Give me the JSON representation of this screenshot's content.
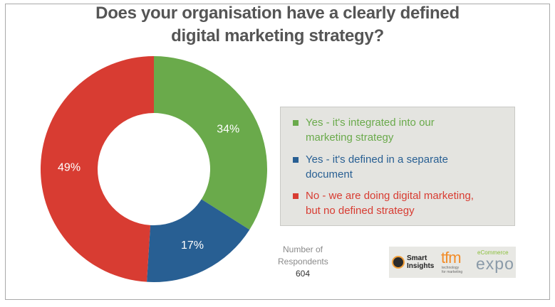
{
  "title_lines": [
    "Does your organisation have a clearly defined",
    "digital marketing strategy?"
  ],
  "respondents": {
    "label_lines": [
      "Number of",
      "Respondents"
    ],
    "count": "604"
  },
  "logos": {
    "smart_insights": [
      "Smart",
      "Insights"
    ],
    "tfm": "tfm",
    "tfm_sub": [
      "technology",
      "for marketing"
    ],
    "ecommerce_small": "eCommerce",
    "ecommerce_big": "expo"
  },
  "chart_data": {
    "type": "pie",
    "variant": "donut",
    "title": "Does your organisation have a clearly defined digital marketing strategy?",
    "slices": [
      {
        "label": "Yes - it's integrated into our marketing strategy",
        "value": 34,
        "value_label": "34%",
        "color": "#6aaa4b"
      },
      {
        "label": "Yes - it's defined in a separate document",
        "value": 17,
        "value_label": "17%",
        "color": "#285f93"
      },
      {
        "label": "No - we are doing digital marketing, but no defined strategy",
        "value": 49,
        "value_label": "49%",
        "color": "#d83c32"
      }
    ],
    "legend_placement": "right",
    "legend": [
      {
        "lines": [
          "Yes - it's integrated into our",
          "marketing strategy"
        ],
        "color": "#6aaa4b"
      },
      {
        "lines": [
          "Yes - it's defined in a separate",
          "document"
        ],
        "color": "#285f93"
      },
      {
        "lines": [
          "No - we are doing digital marketing,",
          "but no defined strategy"
        ],
        "color": "#d83c32"
      }
    ]
  }
}
